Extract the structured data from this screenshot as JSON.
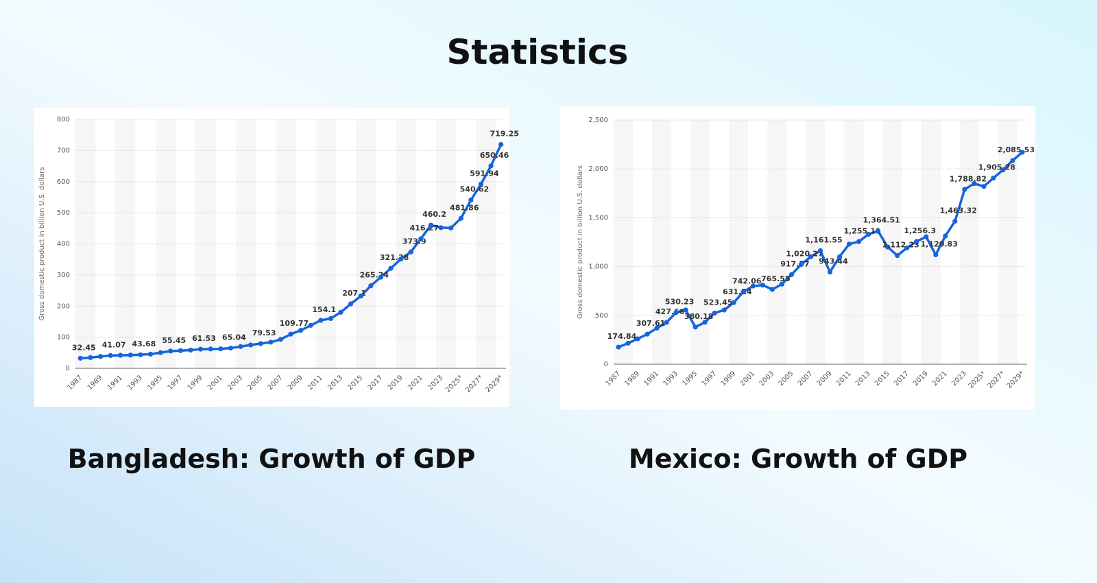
{
  "header": {
    "title": "Statistics"
  },
  "chart_data": [
    {
      "type": "line",
      "title": "Bangladesh: Growth of GDP",
      "y_label": "Gross domestic product in billion U.S. dollars",
      "categories": [
        "1987",
        null,
        "1989",
        null,
        "1991",
        null,
        "1993",
        null,
        "1995",
        null,
        "1997",
        null,
        "1999",
        null,
        "2001",
        null,
        "2003",
        null,
        "2005",
        null,
        "2007",
        null,
        "2009",
        null,
        "2011",
        null,
        "2013",
        null,
        "2015",
        null,
        "2017",
        null,
        "2019",
        null,
        "2021",
        null,
        "2023",
        null,
        "2025*",
        null,
        "2027*",
        null,
        "2029*"
      ],
      "series": [
        {
          "name": "GDP",
          "color": "#1764db",
          "values": [
            32.45,
            34.5,
            38,
            41.07,
            41.8,
            42.5,
            43.68,
            45.5,
            50.5,
            55.45,
            56.8,
            58.5,
            61.53,
            62,
            62.5,
            65.04,
            70,
            75,
            79.53,
            84,
            93,
            109.77,
            122,
            138,
            154.1,
            160,
            180,
            207.1,
            232,
            265.24,
            293,
            321.38,
            351,
            373.9,
            416.27,
            460.2,
            452,
            451,
            481.86,
            540.62,
            591.94,
            650.46,
            719.25
          ],
          "value_labels": [
            "32.45",
            null,
            null,
            "41.07",
            null,
            null,
            "43.68",
            null,
            null,
            "55.45",
            null,
            null,
            "61.53",
            null,
            null,
            "65.04",
            null,
            null,
            "79.53",
            null,
            null,
            "109.77",
            null,
            null,
            "154.1",
            null,
            null,
            "207.1",
            null,
            "265.24",
            null,
            "321.38",
            null,
            "373.9",
            "416.27",
            "460.2",
            null,
            null,
            "481.86",
            "540.62",
            "591.94",
            "650.46",
            "719.25"
          ]
        }
      ],
      "ylim": [
        0,
        800
      ],
      "yticks": [
        0,
        100,
        200,
        300,
        400,
        500,
        600,
        700,
        800
      ],
      "grid": true
    },
    {
      "type": "line",
      "title": "Mexico: Growth of GDP",
      "y_label": "Gross domestic product in billion U.S. dollars",
      "categories": [
        "1987",
        null,
        "1989",
        null,
        "1991",
        null,
        "1993",
        null,
        "1995",
        null,
        "1997",
        null,
        "1999",
        null,
        "2001",
        null,
        "2003",
        null,
        "2005",
        null,
        "2007",
        null,
        "2009",
        null,
        "2011",
        null,
        "2013",
        null,
        "2015",
        null,
        "2017",
        null,
        "2019",
        null,
        "2021",
        null,
        "2023",
        null,
        "2025*",
        null,
        "2027*",
        null,
        "2029*"
      ],
      "series": [
        {
          "name": "GDP",
          "color": "#1764db",
          "values": [
            174.84,
            215,
            260,
            307.61,
            370,
            427.66,
            530.23,
            555,
            380.18,
            430,
            523.45,
            555,
            631.24,
            742.06,
            800,
            810,
            765.55,
            820,
            917.57,
            1020.27,
            1100,
            1161.55,
            943.44,
            1100,
            1230,
            1255.11,
            1330,
            1364.51,
            1200,
            1112.23,
            1190,
            1256.3,
            1305,
            1120.83,
            1313,
            1463.32,
            1788.82,
            1850,
            1820,
            1905.28,
            1990,
            2085.53,
            2170
          ],
          "value_labels": [
            "174.84",
            null,
            null,
            "307.61",
            null,
            "427.66",
            "530.23",
            null,
            "380.18",
            null,
            "523.45",
            null,
            "631.24",
            "742.06",
            null,
            null,
            "765.55",
            null,
            "917.57",
            "1,020.27",
            null,
            "1,161.55",
            "943.44",
            null,
            null,
            "1,255.11",
            null,
            "1,364.51",
            null,
            "1,112.23",
            null,
            "1,256.3",
            null,
            "1,120.83",
            null,
            "1,463.32",
            "1,788.82",
            null,
            null,
            "1,905.28",
            null,
            "2,085.53",
            null
          ]
        }
      ],
      "ylim": [
        0,
        2500
      ],
      "yticks": [
        0,
        500,
        {
          "value": 1000,
          "label": "1,000"
        },
        {
          "value": 1500,
          "label": "1,500"
        },
        {
          "value": 2000,
          "label": "2,000"
        },
        {
          "value": 2500,
          "label": "2,500"
        }
      ],
      "grid": true
    }
  ]
}
